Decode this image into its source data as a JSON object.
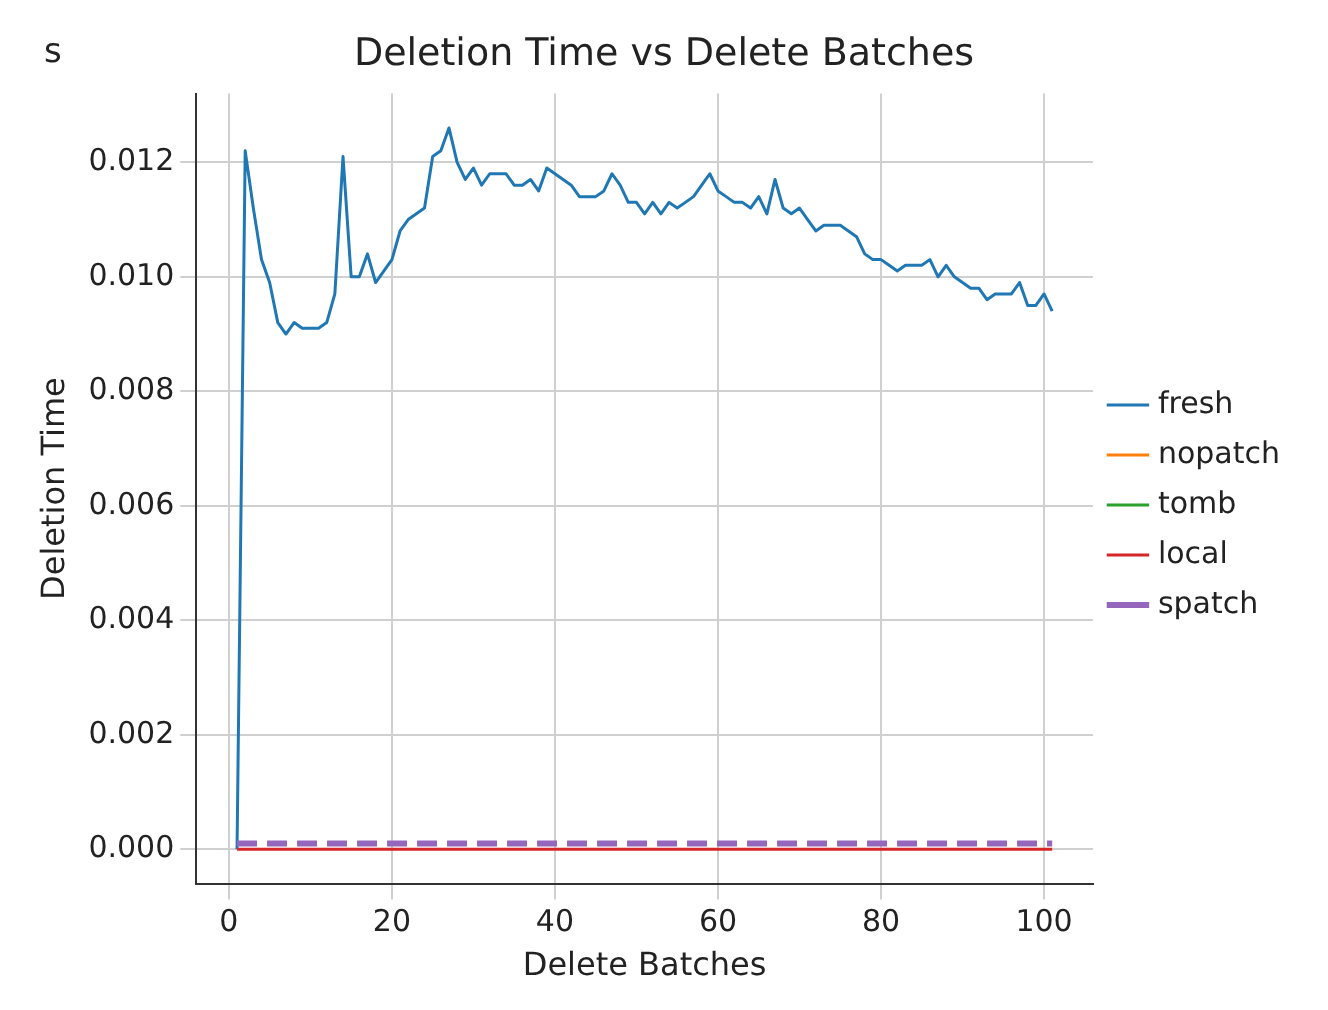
{
  "chart_data": {
    "type": "line",
    "title": "Deletion Time vs Delete Batches",
    "xlabel": "Delete Batches",
    "ylabel": "Deletion Time",
    "annotations": [
      "s"
    ],
    "xlim": [
      -4,
      106
    ],
    "xticks": [
      0,
      20,
      40,
      60,
      80,
      100
    ],
    "ylim": [
      -0.0006,
      0.0132
    ],
    "yticks": [
      {
        "value": 0,
        "label": "0.000"
      },
      {
        "value": 0.002,
        "label": "0.002"
      },
      {
        "value": 0.004,
        "label": "0.004"
      },
      {
        "value": 0.006,
        "label": "0.006"
      },
      {
        "value": 0.008,
        "label": "0.008"
      },
      {
        "value": 0.01,
        "label": "0.010"
      },
      {
        "value": 0.012,
        "label": "0.012"
      }
    ],
    "grid": true,
    "legend": "right",
    "marker": "none",
    "x": [
      1,
      2,
      3,
      4,
      5,
      6,
      7,
      8,
      9,
      10,
      11,
      12,
      13,
      14,
      15,
      16,
      17,
      18,
      19,
      20,
      21,
      22,
      23,
      24,
      25,
      26,
      27,
      28,
      29,
      30,
      31,
      32,
      33,
      34,
      35,
      36,
      37,
      38,
      39,
      40,
      41,
      42,
      43,
      44,
      45,
      46,
      47,
      48,
      49,
      50,
      51,
      52,
      53,
      54,
      55,
      56,
      57,
      58,
      59,
      60,
      61,
      62,
      63,
      64,
      65,
      66,
      67,
      68,
      69,
      70,
      71,
      72,
      73,
      74,
      75,
      76,
      77,
      78,
      79,
      80,
      81,
      82,
      83,
      84,
      85,
      86,
      87,
      88,
      89,
      90,
      91,
      92,
      93,
      94,
      95,
      96,
      97,
      98,
      99,
      100,
      101
    ],
    "series": [
      {
        "name": "fresh",
        "color": "#1f77b4",
        "values": [
          0,
          0.0122,
          0.0112,
          0.0103,
          0.0099,
          0.0092,
          0.009,
          0.0092,
          0.0091,
          0.0091,
          0.0091,
          0.0092,
          0.0097,
          0.0121,
          0.01,
          0.01,
          0.0104,
          0.0099,
          0.0101,
          0.0103,
          0.0108,
          0.011,
          0.0111,
          0.0112,
          0.0121,
          0.0122,
          0.0126,
          0.012,
          0.0117,
          0.0119,
          0.0116,
          0.0118,
          0.0118,
          0.0118,
          0.0116,
          0.0116,
          0.0117,
          0.0115,
          0.0119,
          0.0118,
          0.0117,
          0.0116,
          0.0114,
          0.0114,
          0.0114,
          0.0115,
          0.0118,
          0.0116,
          0.0113,
          0.0113,
          0.0111,
          0.0113,
          0.0111,
          0.0113,
          0.0112,
          0.0113,
          0.0114,
          0.0116,
          0.0118,
          0.0115,
          0.0114,
          0.0113,
          0.0113,
          0.0112,
          0.0114,
          0.0111,
          0.0117,
          0.0112,
          0.0111,
          0.0112,
          0.011,
          0.0108,
          0.0109,
          0.0109,
          0.0109,
          0.0108,
          0.0107,
          0.0104,
          0.0103,
          0.0103,
          0.0102,
          0.0101,
          0.0102,
          0.0102,
          0.0102,
          0.0103,
          0.01,
          0.0102,
          0.01,
          0.0099,
          0.0098,
          0.0098,
          0.0096,
          0.0097,
          0.0097,
          0.0097,
          0.0099,
          0.0095,
          0.0095,
          0.0097,
          0.0094
        ]
      },
      {
        "name": "nopatch",
        "color": "#ff7f0e",
        "values": [
          null,
          null,
          null,
          null,
          null,
          null,
          null,
          null,
          null,
          null,
          null,
          null,
          null,
          null,
          null,
          null,
          null,
          null,
          null,
          null,
          null,
          null,
          null,
          null,
          null,
          null,
          null,
          null,
          null,
          null,
          null,
          null,
          null,
          null,
          null,
          null,
          null,
          null,
          null,
          null,
          null,
          null,
          null,
          null,
          null,
          null,
          null,
          null,
          null,
          null,
          null,
          null,
          null,
          null,
          null,
          null,
          null,
          null,
          null,
          null,
          null,
          null,
          null,
          null,
          null,
          null,
          null,
          null,
          null,
          null,
          null,
          null,
          null,
          null,
          null,
          null,
          null,
          null,
          null,
          null,
          null,
          null,
          null,
          null,
          null,
          null,
          null,
          null,
          null,
          null,
          null,
          null,
          null,
          null,
          null,
          null,
          null,
          null,
          null,
          null,
          null
        ]
      },
      {
        "name": "tomb",
        "color": "#2ca02c",
        "values": [
          null,
          null,
          null,
          null,
          null,
          null,
          null,
          null,
          null,
          null,
          null,
          null,
          null,
          null,
          null,
          null,
          null,
          null,
          null,
          null,
          null,
          null,
          null,
          null,
          null,
          null,
          null,
          null,
          null,
          null,
          null,
          null,
          null,
          null,
          null,
          null,
          null,
          null,
          null,
          null,
          null,
          null,
          null,
          null,
          null,
          null,
          null,
          null,
          null,
          null,
          null,
          null,
          null,
          null,
          null,
          null,
          null,
          null,
          null,
          null,
          null,
          null,
          null,
          null,
          null,
          null,
          null,
          null,
          null,
          null,
          null,
          null,
          null,
          null,
          null,
          null,
          null,
          null,
          null,
          null,
          null,
          null,
          null,
          null,
          null,
          null,
          null,
          null,
          null,
          null,
          null,
          null,
          null,
          null,
          null,
          null,
          null,
          null,
          null,
          null,
          null
        ]
      },
      {
        "name": "local",
        "color": "#d62728",
        "values": [
          0,
          0,
          0,
          0,
          0,
          0,
          0,
          0,
          0,
          0,
          0,
          0,
          0,
          0,
          0,
          0,
          0,
          0,
          0,
          0,
          0,
          0,
          0,
          0,
          0,
          0,
          0,
          0,
          0,
          0,
          0,
          0,
          0,
          0,
          0,
          0,
          0,
          0,
          0,
          0,
          0,
          0,
          0,
          0,
          0,
          0,
          0,
          0,
          0,
          0,
          0,
          0,
          0,
          0,
          0,
          0,
          0,
          0,
          0,
          0,
          0,
          0,
          0,
          0,
          0,
          0,
          0,
          0,
          0,
          0,
          0,
          0,
          0,
          0,
          0,
          0,
          0,
          0,
          0,
          0,
          0,
          0,
          0,
          0,
          0,
          0,
          0,
          0,
          0,
          0,
          0,
          0,
          0,
          0,
          0,
          0,
          0,
          0,
          0,
          0,
          0
        ]
      },
      {
        "name": "spatch",
        "color": "#9467bd",
        "line_style": "dashed",
        "x": [
          1,
          101
        ],
        "values": [
          0.0001,
          0.0001
        ]
      }
    ]
  }
}
